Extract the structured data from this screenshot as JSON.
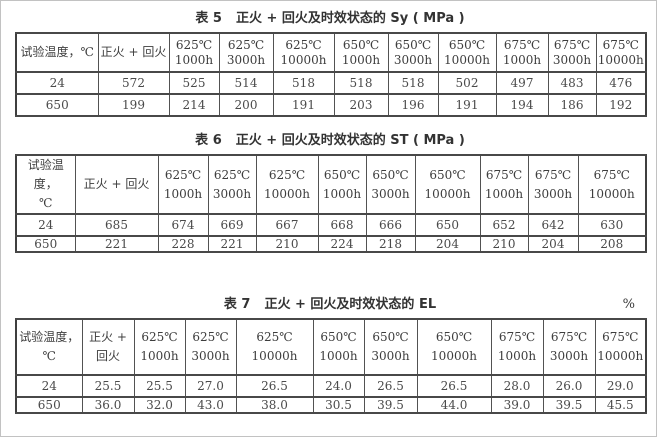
{
  "page": {
    "background": "#ffffff",
    "frame_color": "#c2c2c2",
    "border_color": "#3f3f3f",
    "text_color": "#424242"
  },
  "tables": [
    {
      "caption_label": "表 5",
      "caption_text": "正火 + 回火及时效状态的 Sy ( MPa )",
      "unit": "",
      "columns": [
        "试验温度，℃",
        "正火 + 回火",
        "625℃\n1000h",
        "625℃\n3000h",
        "625℃\n10000h",
        "650℃\n1000h",
        "650℃\n3000h",
        "650℃\n10000h",
        "675℃\n1000h",
        "675℃\n3000h",
        "675℃\n10000h"
      ],
      "rows": [
        [
          "24",
          "572",
          "525",
          "514",
          "518",
          "518",
          "518",
          "502",
          "497",
          "483",
          "476"
        ],
        [
          "650",
          "199",
          "214",
          "200",
          "191",
          "203",
          "196",
          "191",
          "194",
          "186",
          "192"
        ]
      ]
    },
    {
      "caption_label": "表 6",
      "caption_text": "正火 + 回火及时效状态的 ST ( MPa )",
      "unit": "",
      "columns": [
        "试验温度，\n℃",
        "正火 + 回火",
        "625℃\n1000h",
        "625℃\n3000h",
        "625℃\n10000h",
        "650℃\n1000h",
        "650℃\n3000h",
        "650℃\n10000h",
        "675℃\n1000h",
        "675℃\n3000h",
        "675℃\n10000h"
      ],
      "rows": [
        [
          "24",
          "685",
          "674",
          "669",
          "667",
          "668",
          "666",
          "650",
          "652",
          "642",
          "630"
        ],
        [
          "650",
          "221",
          "228",
          "221",
          "210",
          "224",
          "218",
          "204",
          "210",
          "204",
          "208"
        ]
      ]
    },
    {
      "caption_label": "表 7",
      "caption_text": "正火 + 回火及时效状态的 EL",
      "unit": "%",
      "columns": [
        "试验温度，\n℃",
        "正火 +\n回火",
        "625℃\n1000h",
        "625℃\n3000h",
        "625℃\n10000h",
        "650℃\n1000h",
        "650℃\n3000h",
        "650℃\n10000h",
        "675℃\n1000h",
        "675℃\n3000h",
        "675℃\n10000h"
      ],
      "rows": [
        [
          "24",
          "25.5",
          "25.5",
          "27.0",
          "26.5",
          "24.0",
          "26.5",
          "26.5",
          "28.0",
          "26.0",
          "29.0"
        ],
        [
          "650",
          "36.0",
          "32.0",
          "43.0",
          "38.0",
          "30.5",
          "39.5",
          "44.0",
          "39.0",
          "39.5",
          "45.5"
        ]
      ]
    }
  ]
}
